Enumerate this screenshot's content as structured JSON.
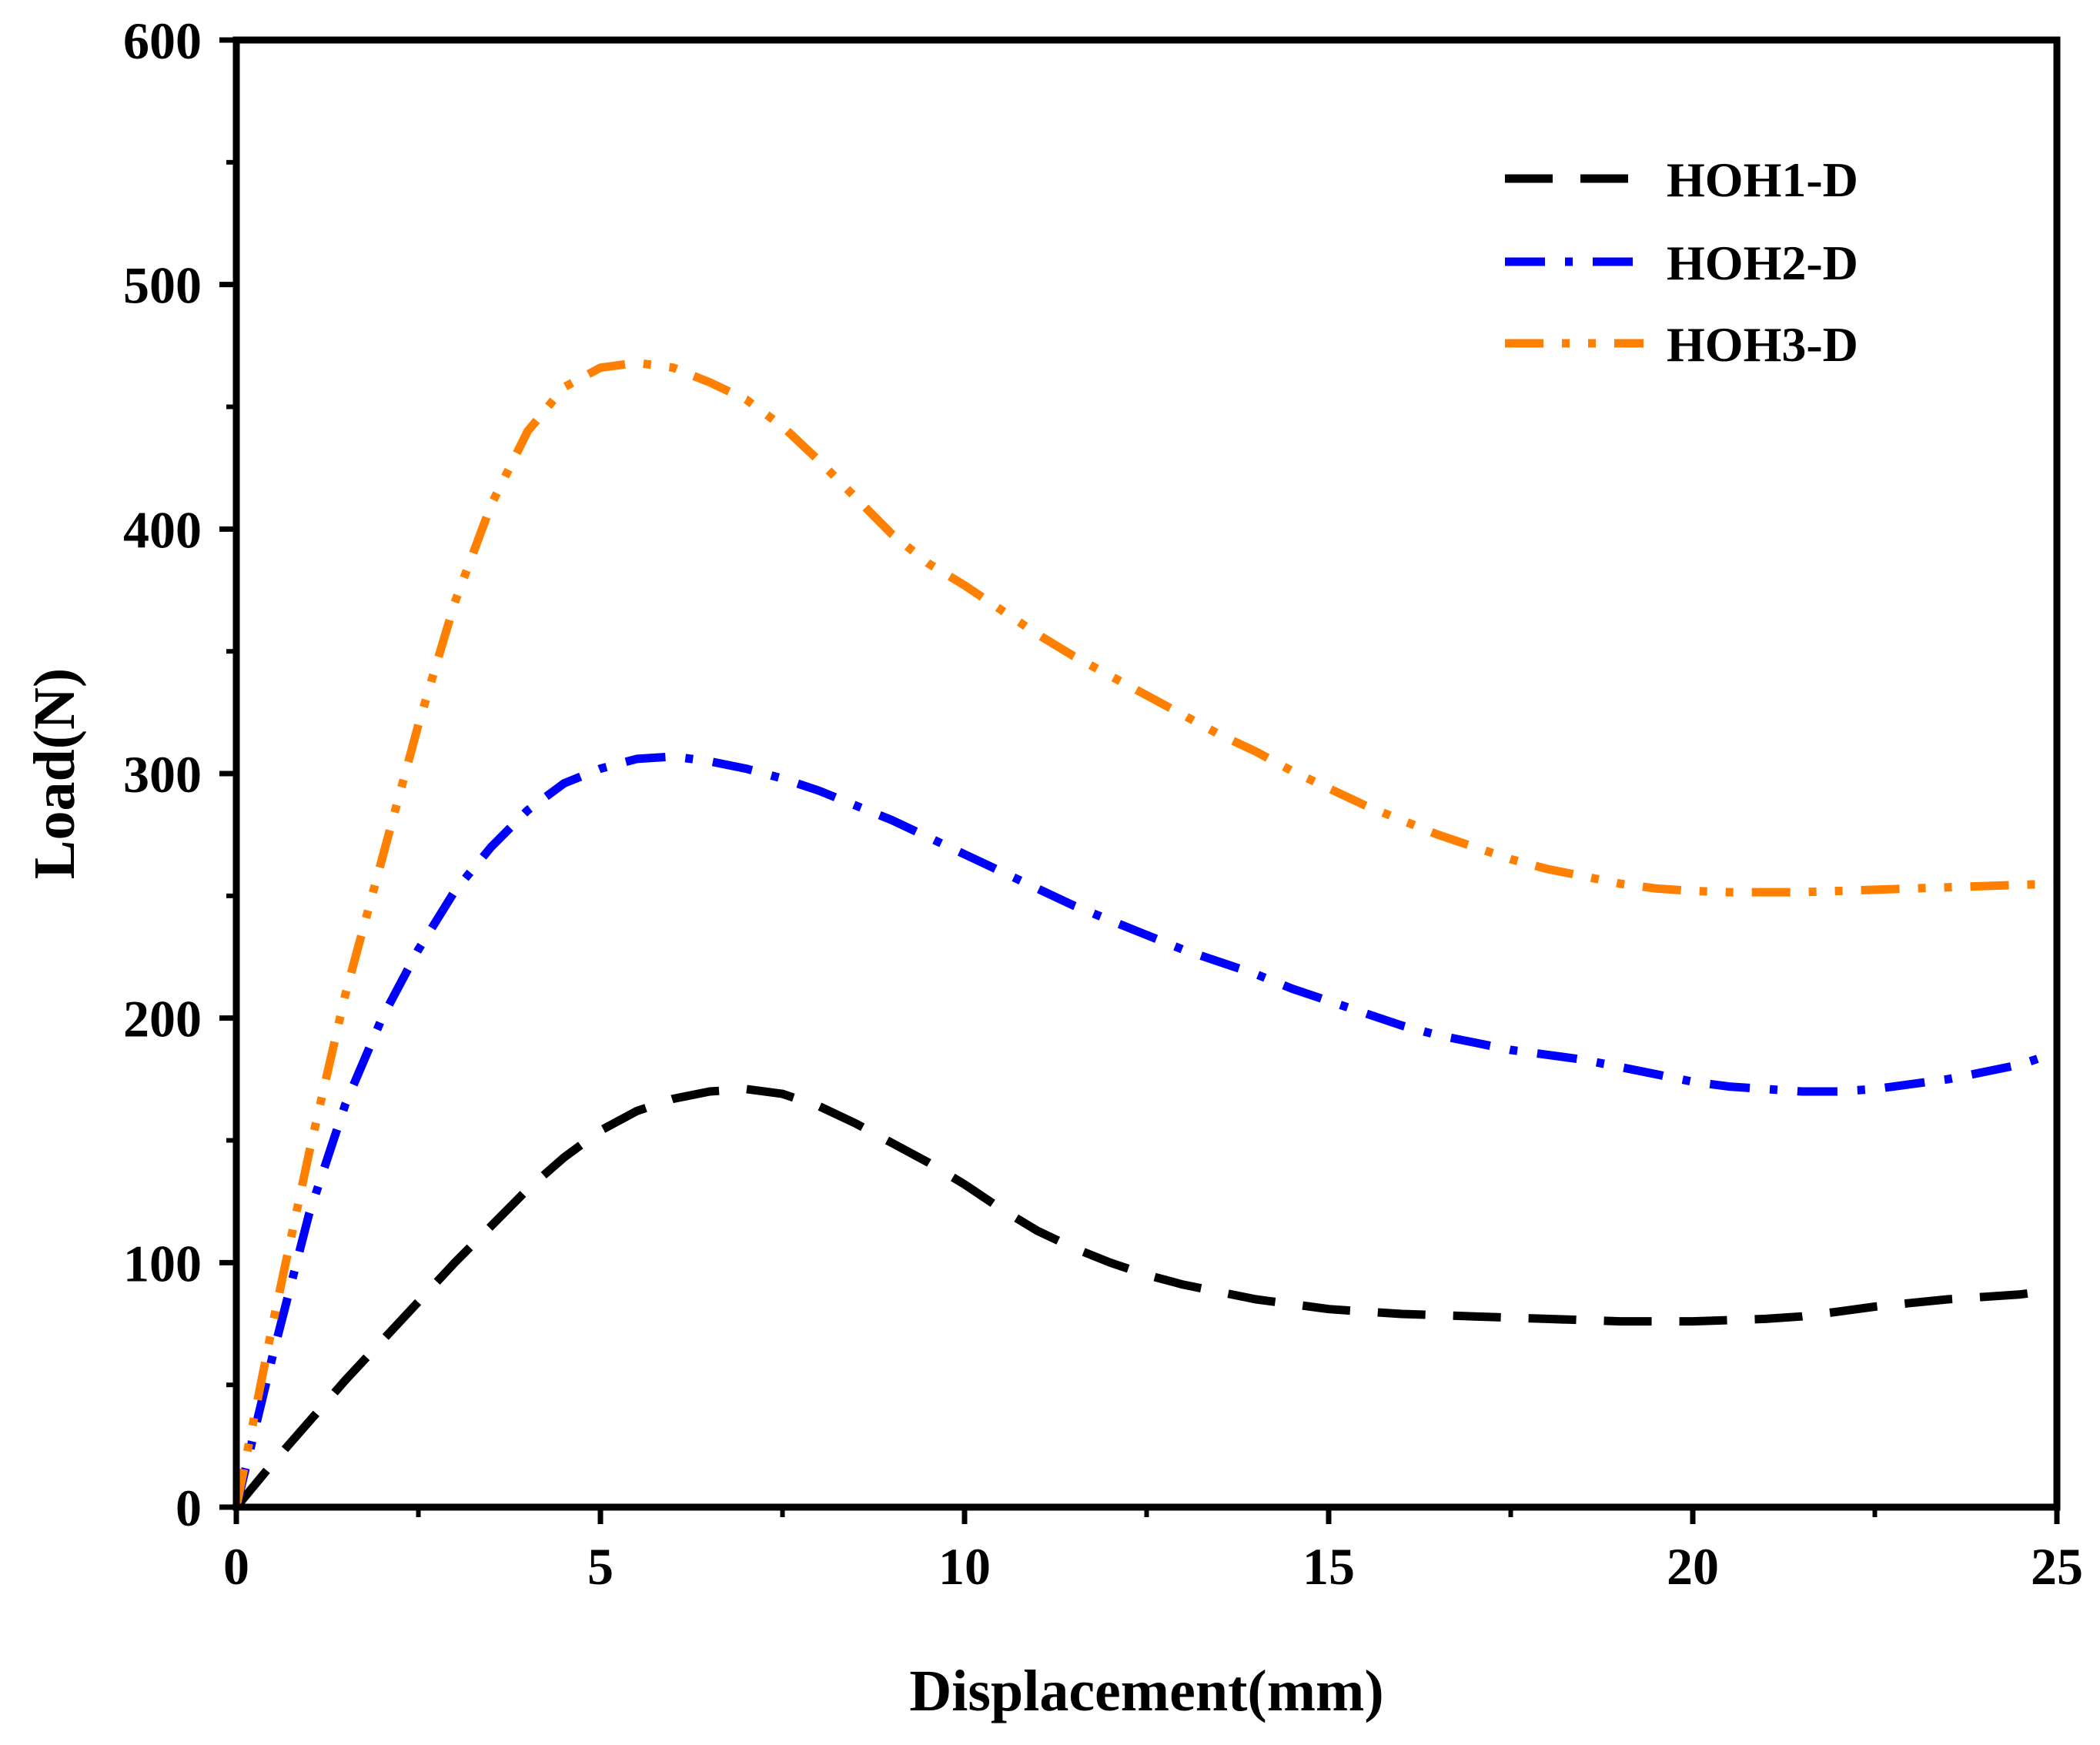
{
  "chart_data": {
    "type": "line",
    "title": "",
    "xlabel": "Displacement(mm)",
    "ylabel": "Load(N)",
    "xlim": [
      0,
      25
    ],
    "ylim": [
      0,
      600
    ],
    "xticks": [
      0,
      5,
      10,
      15,
      20,
      25
    ],
    "yticks": [
      0,
      100,
      200,
      300,
      400,
      500,
      600
    ],
    "grid": false,
    "legend_position": "top-right",
    "series": [
      {
        "name": "HOH1-D",
        "color": "#000000",
        "style": "dash",
        "x": [
          0,
          0.5,
          1,
          1.5,
          2,
          2.5,
          3,
          3.5,
          4,
          4.5,
          5,
          5.5,
          6,
          6.5,
          7,
          7.5,
          8,
          8.5,
          9,
          9.5,
          10,
          10.5,
          11,
          11.5,
          12,
          12.5,
          13,
          13.5,
          14,
          14.5,
          15,
          15.5,
          16,
          16.5,
          17,
          17.5,
          18,
          18.5,
          19,
          19.5,
          20,
          20.5,
          21,
          21.5,
          22,
          22.5,
          23,
          23.5,
          24,
          24.5,
          25
        ],
        "y": [
          0,
          18,
          35,
          52,
          68,
          84,
          100,
          115,
          130,
          143,
          154,
          162,
          167,
          170,
          171,
          169,
          164,
          157,
          149,
          141,
          132,
          122,
          113,
          106,
          100,
          95,
          91,
          88,
          85,
          83,
          81,
          80,
          79,
          78.5,
          78,
          77.5,
          77,
          76.5,
          76,
          76,
          76,
          76.5,
          77,
          78,
          80,
          82,
          83.5,
          85,
          86,
          87,
          89
        ]
      },
      {
        "name": "HOH2-D",
        "color": "#0000ff",
        "style": "dash-dot",
        "x": [
          0,
          0.5,
          1,
          1.5,
          2,
          2.5,
          3,
          3.5,
          4,
          4.5,
          5,
          5.5,
          6,
          6.5,
          7,
          7.5,
          8,
          8.5,
          9,
          9.5,
          10,
          10.5,
          11,
          11.5,
          12,
          12.5,
          13,
          13.5,
          14,
          14.5,
          15,
          15.5,
          16,
          16.5,
          17,
          17.5,
          18,
          18.5,
          19,
          19.5,
          20,
          20.5,
          21,
          21.5,
          22,
          22.5,
          23,
          23.5,
          24,
          24.5,
          25
        ],
        "y": [
          0,
          62,
          120,
          165,
          200,
          228,
          252,
          270,
          285,
          296,
          302,
          306,
          307,
          305,
          302,
          298,
          293,
          287,
          281,
          274,
          267,
          260,
          253,
          246,
          240,
          234,
          228,
          223,
          218,
          212,
          207,
          202,
          197,
          193,
          190,
          187,
          185,
          183,
          180,
          177,
          174,
          172,
          171,
          170,
          170,
          171,
          173,
          175,
          178,
          181,
          186
        ]
      },
      {
        "name": "HOH3-D",
        "color": "#ff8000",
        "style": "dash-dot-dot",
        "x": [
          0,
          0.5,
          1,
          1.5,
          2,
          2.5,
          3,
          3.5,
          4,
          4.5,
          5,
          5.5,
          6,
          6.5,
          7,
          7.5,
          8,
          8.5,
          9,
          9.5,
          10,
          10.5,
          11,
          11.5,
          12,
          12.5,
          13,
          13.5,
          14,
          14.5,
          15,
          15.5,
          16,
          16.5,
          17,
          17.5,
          18,
          18.5,
          19,
          19.5,
          20,
          20.5,
          21,
          21.5,
          22,
          22.5,
          23,
          23.5,
          24,
          24.5,
          25
        ],
        "y": [
          0,
          75,
          145,
          210,
          265,
          320,
          370,
          410,
          440,
          458,
          466,
          468,
          466,
          460,
          453,
          442,
          428,
          413,
          398,
          386,
          377,
          367,
          357,
          348,
          340,
          332,
          324,
          316,
          309,
          301,
          294,
          287,
          281,
          275,
          270,
          265,
          261,
          258,
          255,
          253,
          252,
          251.5,
          251.5,
          251.5,
          252,
          252.5,
          253,
          253.5,
          254,
          254.5,
          255
        ]
      }
    ]
  }
}
